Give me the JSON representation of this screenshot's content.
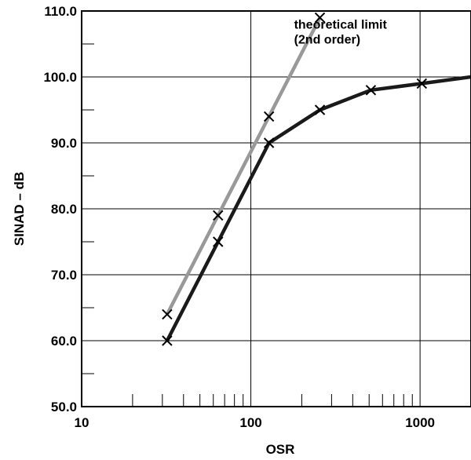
{
  "chart_data": {
    "type": "line",
    "title": "",
    "xlabel": "OSR",
    "ylabel": "SINAD – dB",
    "x_scale": "log",
    "xlim": [
      10,
      2000
    ],
    "ylim": [
      50,
      110
    ],
    "x_ticks": [
      10,
      100,
      1000
    ],
    "x_tick_labels": [
      "10",
      "100",
      "1000"
    ],
    "y_ticks": [
      50,
      60,
      70,
      80,
      90,
      100,
      110
    ],
    "y_tick_labels": [
      "50.0",
      "60.0",
      "70.0",
      "80.0",
      "90.0",
      "100.0",
      "110.0"
    ],
    "grid": true,
    "series": [
      {
        "name": "",
        "color": "#999999",
        "marker": "x",
        "x": [
          32,
          64,
          128,
          256
        ],
        "y": [
          64,
          79,
          94,
          109
        ]
      },
      {
        "name": "",
        "color": "#1a1a1a",
        "marker": "x",
        "x": [
          32,
          64,
          128,
          256,
          512,
          1024,
          2000
        ],
        "y": [
          60,
          75,
          90,
          95,
          98,
          99,
          100
        ]
      }
    ],
    "annotations": [
      {
        "lines": [
          "theoretical limit",
          "(2nd order)"
        ],
        "at_x": 180,
        "at_y": 107.3
      }
    ]
  }
}
